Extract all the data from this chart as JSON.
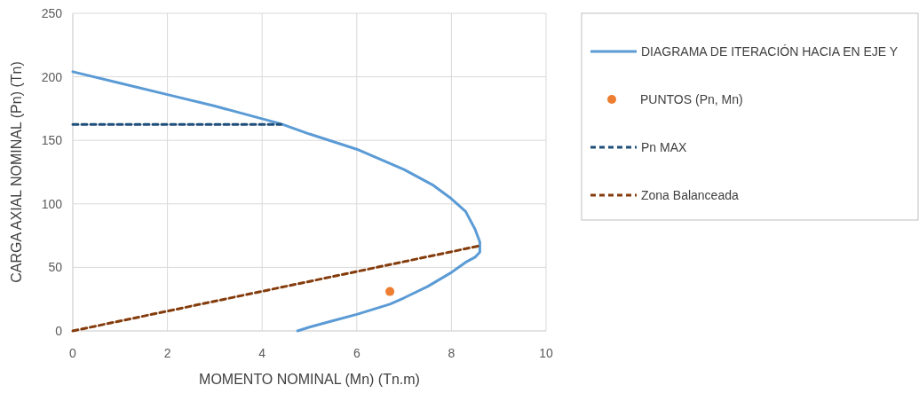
{
  "chart_data": {
    "type": "line",
    "xlabel": "MOMENTO NOMINAL (Mn) (Tn.m)",
    "ylabel": "CARGA AXIAL NOMINAL (Pn) (Tn)",
    "xlim": [
      0,
      10
    ],
    "xticks": [
      0,
      2,
      4,
      6,
      8,
      10
    ],
    "ylim": [
      0,
      250
    ],
    "yticks": [
      0,
      50,
      100,
      150,
      200,
      250
    ],
    "grid": true,
    "legend": "right",
    "series": [
      {
        "name": "DIAGRAMA DE ITERACIÓN HACIA EN EJE Y",
        "color": "#5b9bd5",
        "line_style": "solid",
        "x": [
          0,
          1,
          2,
          3,
          4,
          4.4,
          5,
          6,
          7,
          7.6,
          8,
          8.3,
          8.5,
          8.6,
          8.6,
          8.5,
          8.3,
          8,
          7.5,
          7,
          6.7,
          6,
          5.5,
          5,
          4.75
        ],
        "values": [
          204,
          195,
          186,
          177,
          167,
          163,
          155,
          143,
          127,
          115,
          104,
          94,
          80,
          70,
          62,
          58,
          54,
          46,
          35,
          26,
          21,
          13,
          8,
          3,
          0
        ]
      },
      {
        "name": "PUNTOS (Pn, Mn)",
        "type": "scatter",
        "color": "#ed7d31",
        "marker": "circle",
        "x": [
          6.7
        ],
        "values": [
          31
        ]
      },
      {
        "name": "Pn MAX",
        "color": "#1f4e79",
        "line_style": "dashed",
        "x": [
          0,
          4.4
        ],
        "values": [
          162.5,
          162.5
        ]
      },
      {
        "name": "Zona Balanceada",
        "color": "#843c0c",
        "line_style": "dashed",
        "x": [
          0,
          8.6
        ],
        "values": [
          0,
          67
        ]
      }
    ]
  }
}
